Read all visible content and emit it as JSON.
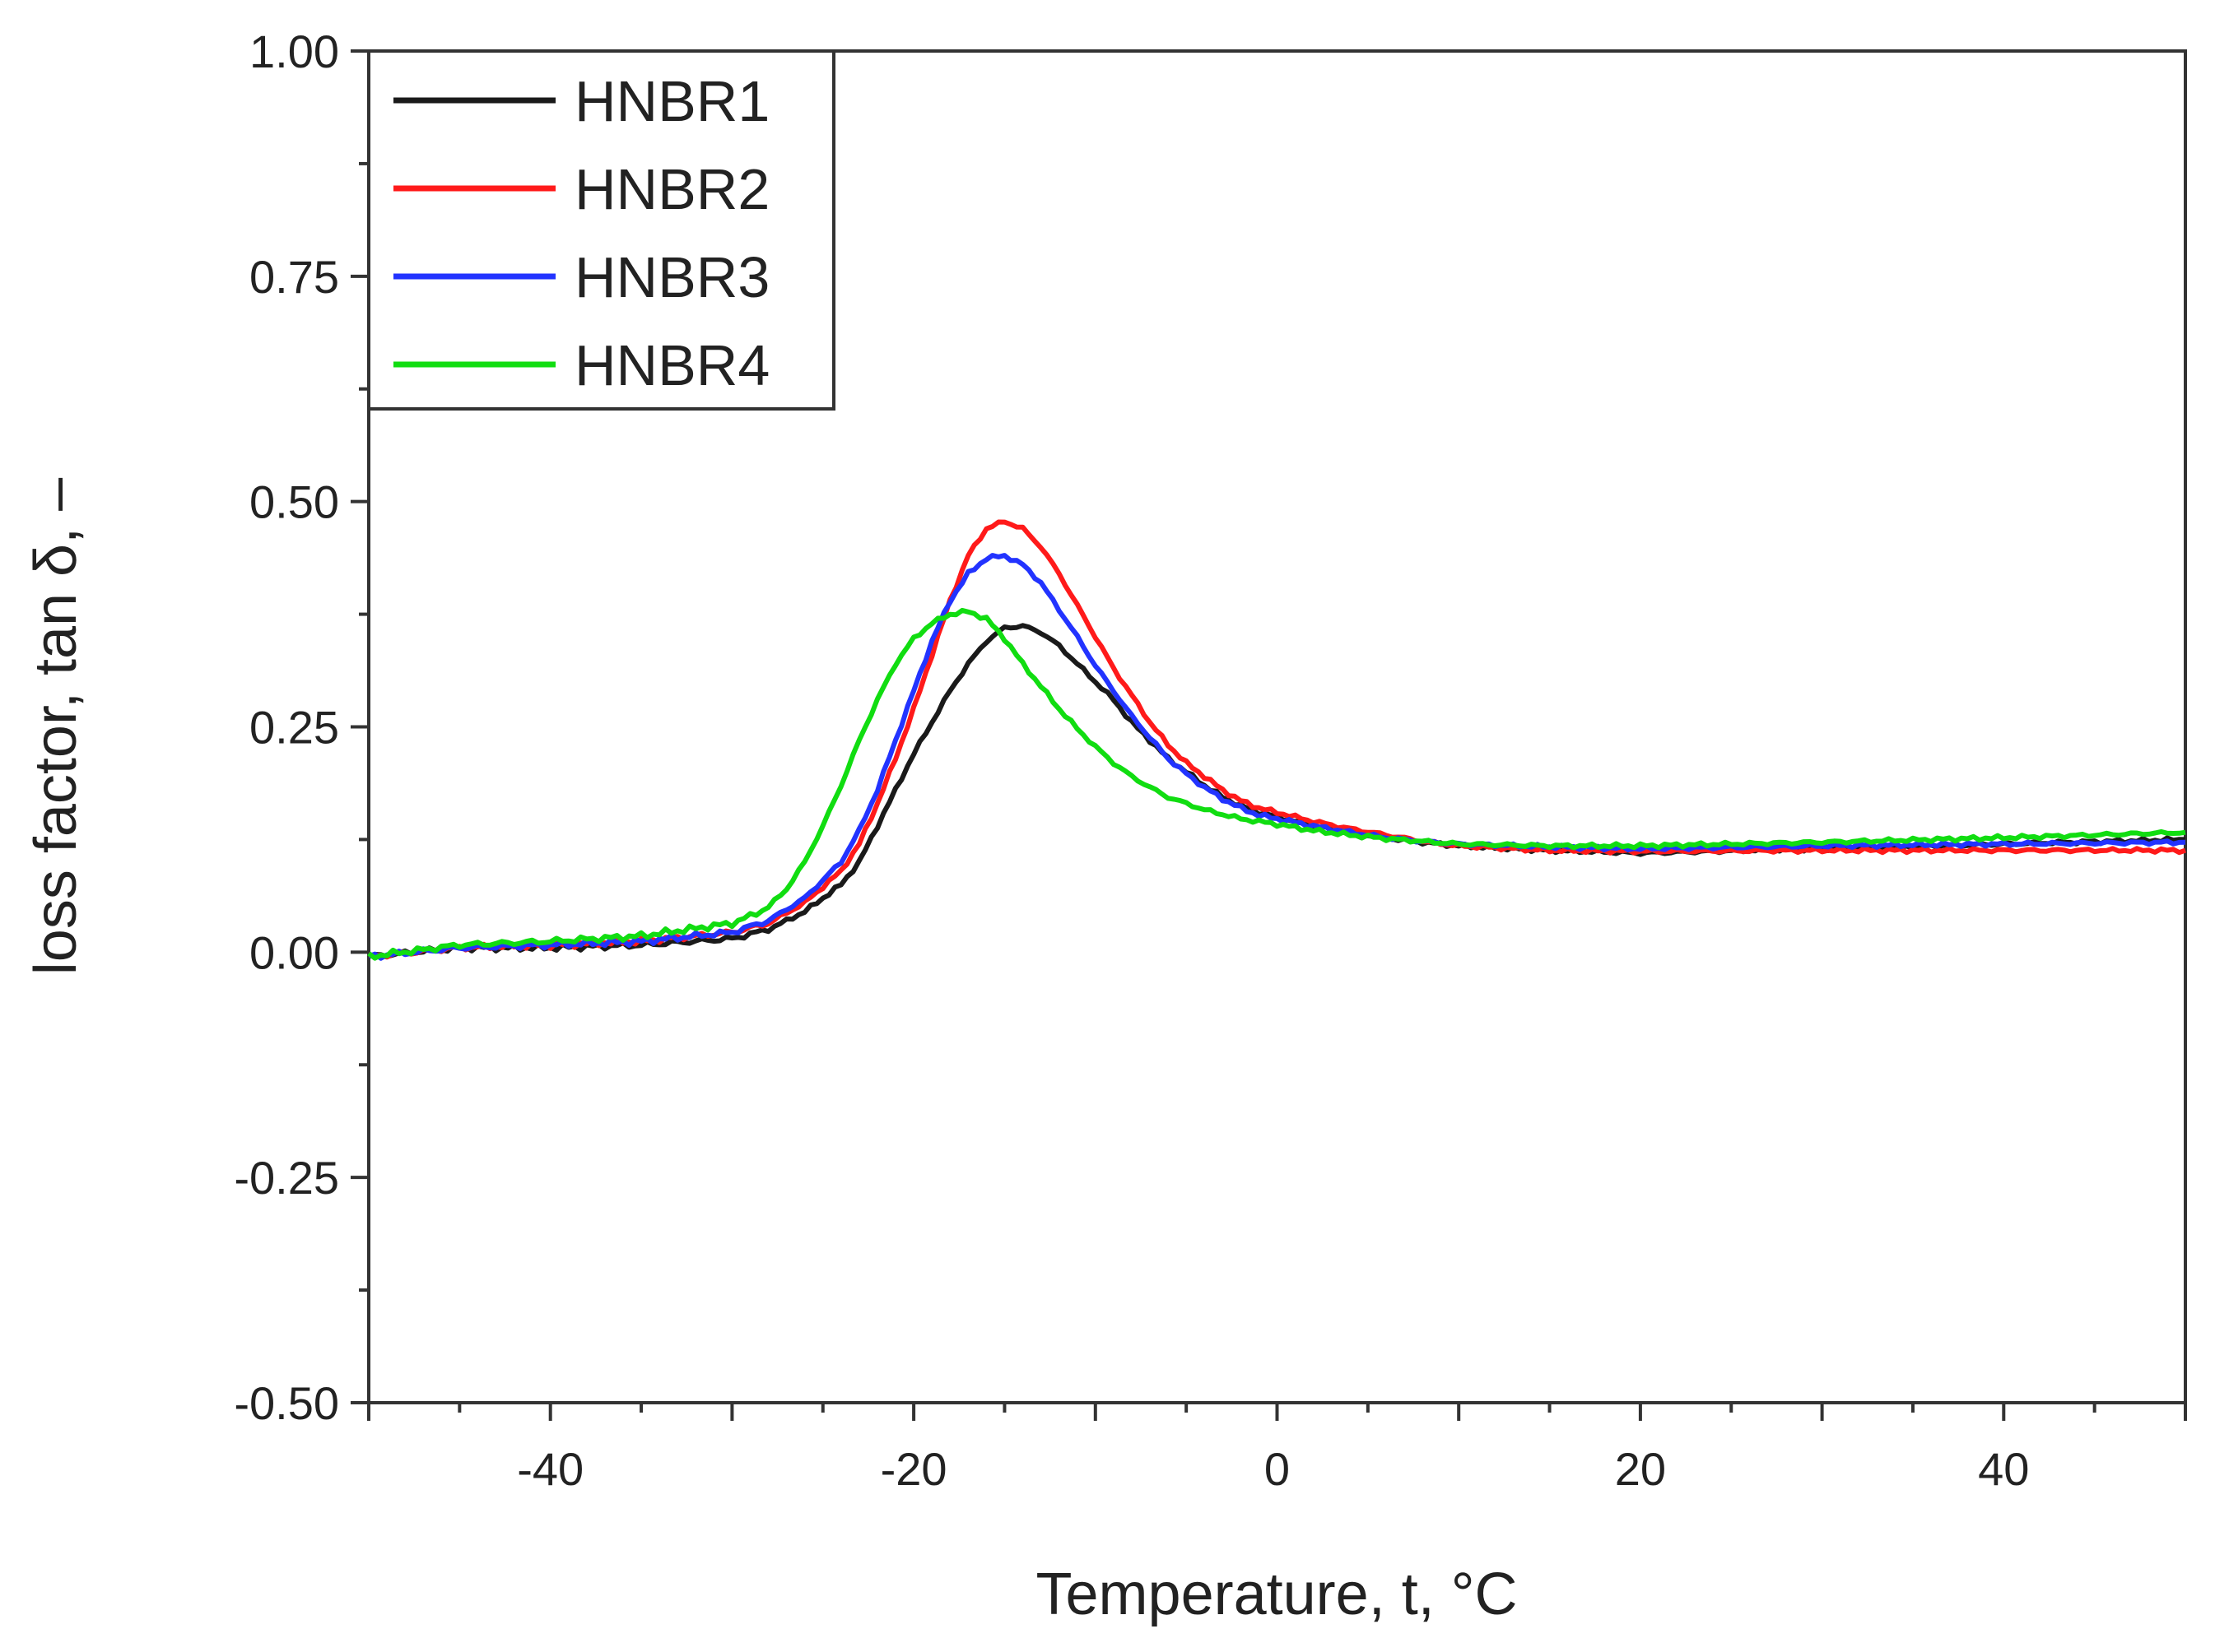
{
  "chart_data": {
    "type": "line",
    "title": "",
    "xlabel": "Temperature, t, °C",
    "ylabel": "loss factor, tan δ, –",
    "xlim": [
      -50,
      50
    ],
    "ylim": [
      -0.5,
      1.0
    ],
    "xticks": [
      -40,
      -20,
      0,
      20,
      40
    ],
    "xtick_labels": [
      "-40",
      "-20",
      "0",
      "20",
      "40"
    ],
    "yticks": [
      -0.5,
      -0.25,
      0.0,
      0.25,
      0.5,
      0.75,
      1.0
    ],
    "ytick_labels": [
      "-0.50",
      "-0.25",
      "0.00",
      "0.25",
      "0.50",
      "0.75",
      "1.00"
    ],
    "grid": false,
    "legend_position": "top-left",
    "series": [
      {
        "name": "HNBR1",
        "color": "#1a1a1a",
        "points": [
          [
            -50,
            -0.005
          ],
          [
            -45,
            0.005
          ],
          [
            -40,
            0.005
          ],
          [
            -35,
            0.008
          ],
          [
            -30,
            0.015
          ],
          [
            -28,
            0.025
          ],
          [
            -26,
            0.045
          ],
          [
            -24,
            0.075
          ],
          [
            -23,
            0.1
          ],
          [
            -22,
            0.14
          ],
          [
            -21,
            0.18
          ],
          [
            -20,
            0.22
          ],
          [
            -19,
            0.255
          ],
          [
            -18,
            0.29
          ],
          [
            -17,
            0.32
          ],
          [
            -16,
            0.345
          ],
          [
            -15,
            0.36
          ],
          [
            -14,
            0.362
          ],
          [
            -13,
            0.355
          ],
          [
            -12,
            0.34
          ],
          [
            -11,
            0.32
          ],
          [
            -10,
            0.3
          ],
          [
            -9,
            0.28
          ],
          [
            -8,
            0.255
          ],
          [
            -7,
            0.235
          ],
          [
            -6,
            0.215
          ],
          [
            -5,
            0.2
          ],
          [
            -4,
            0.185
          ],
          [
            -3,
            0.172
          ],
          [
            -2,
            0.162
          ],
          [
            -1,
            0.155
          ],
          [
            0,
            0.15
          ],
          [
            2,
            0.14
          ],
          [
            4,
            0.133
          ],
          [
            6,
            0.127
          ],
          [
            8,
            0.122
          ],
          [
            10,
            0.118
          ],
          [
            15,
            0.113
          ],
          [
            20,
            0.11
          ],
          [
            30,
            0.115
          ],
          [
            40,
            0.12
          ],
          [
            50,
            0.125
          ]
        ]
      },
      {
        "name": "HNBR2",
        "color": "#ff1a1a",
        "points": [
          [
            -50,
            -0.005
          ],
          [
            -45,
            0.005
          ],
          [
            -40,
            0.008
          ],
          [
            -35,
            0.012
          ],
          [
            -30,
            0.022
          ],
          [
            -28,
            0.032
          ],
          [
            -26,
            0.055
          ],
          [
            -24,
            0.09
          ],
          [
            -23,
            0.12
          ],
          [
            -22,
            0.165
          ],
          [
            -21,
            0.215
          ],
          [
            -20,
            0.27
          ],
          [
            -19,
            0.33
          ],
          [
            -18,
            0.39
          ],
          [
            -17,
            0.44
          ],
          [
            -16,
            0.47
          ],
          [
            -15,
            0.478
          ],
          [
            -14,
            0.47
          ],
          [
            -13,
            0.45
          ],
          [
            -12,
            0.42
          ],
          [
            -11,
            0.385
          ],
          [
            -10,
            0.35
          ],
          [
            -9,
            0.315
          ],
          [
            -8,
            0.285
          ],
          [
            -7,
            0.255
          ],
          [
            -6,
            0.23
          ],
          [
            -5,
            0.21
          ],
          [
            -4,
            0.195
          ],
          [
            -3,
            0.18
          ],
          [
            -2,
            0.168
          ],
          [
            -1,
            0.16
          ],
          [
            0,
            0.155
          ],
          [
            2,
            0.145
          ],
          [
            4,
            0.137
          ],
          [
            6,
            0.13
          ],
          [
            8,
            0.123
          ],
          [
            10,
            0.118
          ],
          [
            15,
            0.113
          ],
          [
            20,
            0.112
          ],
          [
            30,
            0.113
          ],
          [
            40,
            0.113
          ],
          [
            50,
            0.113
          ]
        ]
      },
      {
        "name": "HNBR3",
        "color": "#2233ff",
        "points": [
          [
            -50,
            -0.005
          ],
          [
            -45,
            0.005
          ],
          [
            -40,
            0.008
          ],
          [
            -35,
            0.012
          ],
          [
            -30,
            0.022
          ],
          [
            -28,
            0.035
          ],
          [
            -26,
            0.06
          ],
          [
            -24,
            0.1
          ],
          [
            -23,
            0.135
          ],
          [
            -22,
            0.18
          ],
          [
            -21,
            0.235
          ],
          [
            -20,
            0.29
          ],
          [
            -19,
            0.345
          ],
          [
            -18,
            0.39
          ],
          [
            -17,
            0.42
          ],
          [
            -16,
            0.437
          ],
          [
            -15,
            0.44
          ],
          [
            -14,
            0.43
          ],
          [
            -13,
            0.41
          ],
          [
            -12,
            0.38
          ],
          [
            -11,
            0.35
          ],
          [
            -10,
            0.318
          ],
          [
            -9,
            0.29
          ],
          [
            -8,
            0.262
          ],
          [
            -7,
            0.238
          ],
          [
            -6,
            0.215
          ],
          [
            -5,
            0.198
          ],
          [
            -4,
            0.183
          ],
          [
            -3,
            0.17
          ],
          [
            -2,
            0.16
          ],
          [
            -1,
            0.152
          ],
          [
            0,
            0.148
          ],
          [
            2,
            0.14
          ],
          [
            4,
            0.133
          ],
          [
            6,
            0.127
          ],
          [
            8,
            0.123
          ],
          [
            10,
            0.12
          ],
          [
            15,
            0.117
          ],
          [
            20,
            0.115
          ],
          [
            30,
            0.118
          ],
          [
            40,
            0.12
          ],
          [
            50,
            0.122
          ]
        ]
      },
      {
        "name": "HNBR4",
        "color": "#11dd11",
        "points": [
          [
            -50,
            -0.005
          ],
          [
            -45,
            0.008
          ],
          [
            -40,
            0.012
          ],
          [
            -35,
            0.018
          ],
          [
            -30,
            0.032
          ],
          [
            -29,
            0.04
          ],
          [
            -28,
            0.05
          ],
          [
            -27,
            0.07
          ],
          [
            -26,
            0.1
          ],
          [
            -25,
            0.14
          ],
          [
            -24,
            0.185
          ],
          [
            -23,
            0.235
          ],
          [
            -22,
            0.28
          ],
          [
            -21,
            0.32
          ],
          [
            -20,
            0.348
          ],
          [
            -19,
            0.365
          ],
          [
            -18,
            0.375
          ],
          [
            -17,
            0.378
          ],
          [
            -16,
            0.37
          ],
          [
            -15,
            0.348
          ],
          [
            -14,
            0.32
          ],
          [
            -13,
            0.295
          ],
          [
            -12,
            0.27
          ],
          [
            -11,
            0.248
          ],
          [
            -10,
            0.228
          ],
          [
            -9,
            0.21
          ],
          [
            -8,
            0.195
          ],
          [
            -7,
            0.183
          ],
          [
            -6,
            0.172
          ],
          [
            -5,
            0.165
          ],
          [
            -4,
            0.158
          ],
          [
            -2,
            0.148
          ],
          [
            0,
            0.142
          ],
          [
            2,
            0.135
          ],
          [
            4,
            0.13
          ],
          [
            6,
            0.126
          ],
          [
            8,
            0.123
          ],
          [
            10,
            0.12
          ],
          [
            15,
            0.118
          ],
          [
            20,
            0.118
          ],
          [
            30,
            0.122
          ],
          [
            40,
            0.127
          ],
          [
            50,
            0.133
          ]
        ]
      }
    ]
  }
}
